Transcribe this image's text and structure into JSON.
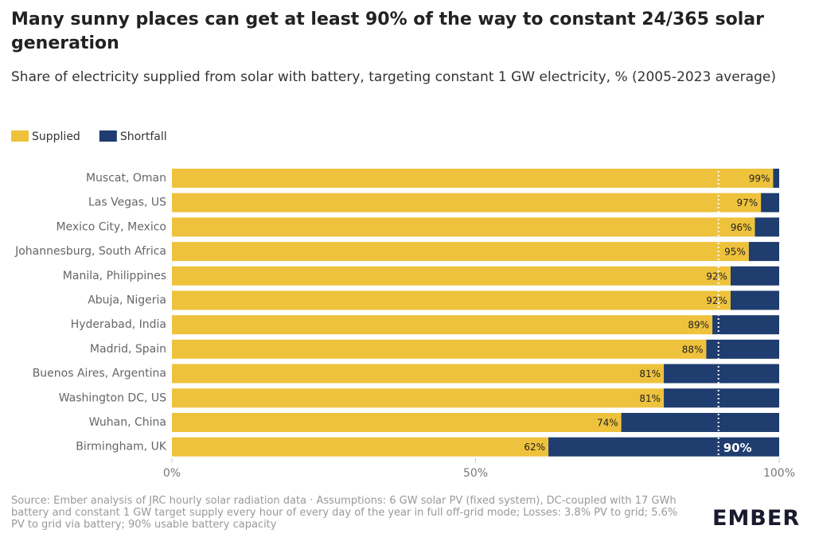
{
  "chart_data": {
    "type": "stacked-bar-horizontal",
    "title": "Many sunny places can get at least 90% of the way to constant 24/365 solar generation",
    "subtitle": "Share of electricity supplied from solar with battery, targeting constant 1 GW electricity, % (2005-2023 average)",
    "categories": [
      "Muscat, Oman",
      "Las Vegas, US",
      "Mexico City, Mexico",
      "Johannesburg, South Africa",
      "Manila, Philippines",
      "Abuja, Nigeria",
      "Hyderabad, India",
      "Madrid, Spain",
      "Buenos Aires, Argentina",
      "Washington DC, US",
      "Wuhan, China",
      "Birmingham, UK"
    ],
    "series": [
      {
        "name": "Supplied",
        "color": "#eec23c",
        "values": [
          99,
          97,
          96,
          95,
          92,
          92,
          89,
          88,
          81,
          81,
          74,
          62
        ],
        "value_labels": [
          "99%",
          "97%",
          "96%",
          "95%",
          "92%",
          "92%",
          "89%",
          "88%",
          "81%",
          "81%",
          "74%",
          "62%"
        ]
      },
      {
        "name": "Shortfall",
        "color": "#1f3d6e",
        "values": [
          1,
          3,
          4,
          5,
          8,
          8,
          11,
          12,
          19,
          19,
          26,
          38
        ]
      }
    ],
    "xlim": [
      0,
      100
    ],
    "xticks": [
      {
        "value": 0,
        "label": "0%"
      },
      {
        "value": 50,
        "label": "50%"
      },
      {
        "value": 100,
        "label": "100%"
      }
    ],
    "reference_line": {
      "value": 90,
      "label": "90%"
    },
    "source": "Source: Ember analysis of JRC hourly solar radiation data · Assumptions: 6 GW solar PV (fixed system), DC-coupled with 17 GWh battery and constant 1 GW target supply every hour of every day of the year in full off-grid mode; Losses: 3.8% PV to grid; 5.6% PV to grid via battery; 90% usable battery capacity",
    "logo": "EMBER"
  }
}
